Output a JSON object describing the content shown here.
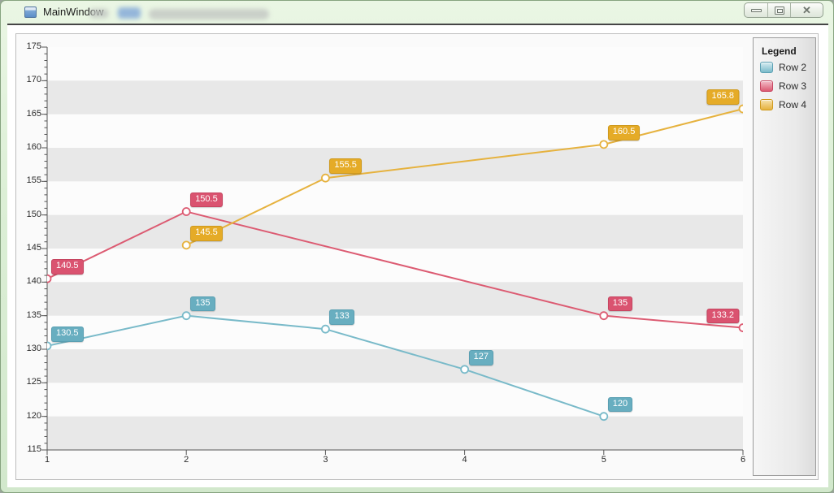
{
  "window": {
    "title": "MainWindow",
    "controls": {
      "minimize_label": "minimize",
      "maximize_label": "maximize",
      "close_label": "close",
      "close_glyph": "✕"
    }
  },
  "legend": {
    "title": "Legend",
    "position": "right"
  },
  "chart_data": {
    "type": "line",
    "title": "",
    "xlabel": "",
    "ylabel": "",
    "xlim": [
      1,
      6
    ],
    "ylim": [
      115,
      175
    ],
    "x_ticks": [
      1,
      2,
      3,
      4,
      5,
      6
    ],
    "y_ticks": [
      115,
      120,
      125,
      130,
      135,
      140,
      145,
      150,
      155,
      160,
      165,
      170,
      175
    ],
    "y_major_step": 5,
    "y_minor_step": 1,
    "grid": "alternating-bands",
    "band_color": "#e8e8e8",
    "plot_background": "#fcfcfc",
    "axis_color": "#565656",
    "band_ranges": [
      [
        115,
        120
      ],
      [
        125,
        130
      ],
      [
        135,
        140
      ],
      [
        145,
        150
      ],
      [
        155,
        160
      ],
      [
        165,
        170
      ]
    ],
    "legend_position": "right",
    "series": [
      {
        "name": "Row 2",
        "color": "#79bac9",
        "label_bg": "#68aec0",
        "label_border": "#5a9fb2",
        "swatch_top": "#d6ecf1",
        "points": [
          {
            "x": 1,
            "y": 130.5,
            "label": "130.5"
          },
          {
            "x": 2,
            "y": 135,
            "label": "135"
          },
          {
            "x": 3,
            "y": 133,
            "label": "133"
          },
          {
            "x": 4,
            "y": 127,
            "label": "127"
          },
          {
            "x": 5,
            "y": 120,
            "label": "120"
          }
        ]
      },
      {
        "name": "Row 3",
        "color": "#dc5b72",
        "label_bg": "#da5370",
        "label_border": "#c64560",
        "swatch_top": "#f2bcc8",
        "points": [
          {
            "x": 1,
            "y": 140.5,
            "label": "140.5"
          },
          {
            "x": 2,
            "y": 150.5,
            "label": "150.5"
          },
          {
            "x": 5,
            "y": 135,
            "label": "135"
          },
          {
            "x": 6,
            "y": 133.2,
            "label": "133.2"
          }
        ]
      },
      {
        "name": "Row 4",
        "color": "#e6b23e",
        "label_bg": "#e5ab27",
        "label_border": "#cf9a1e",
        "swatch_top": "#f6e3ae",
        "points": [
          {
            "x": 2,
            "y": 145.5,
            "label": "145.5"
          },
          {
            "x": 3,
            "y": 155.5,
            "label": "155.5"
          },
          {
            "x": 5,
            "y": 160.5,
            "label": "160.5"
          },
          {
            "x": 6,
            "y": 165.8,
            "label": "165.8"
          }
        ]
      }
    ]
  }
}
